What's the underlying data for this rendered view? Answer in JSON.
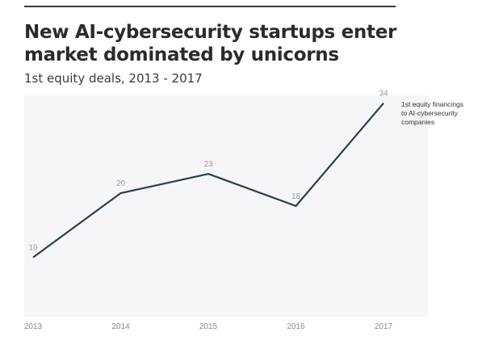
{
  "header": {
    "title": "New AI-cybersecurity startups enter market dominated by unicorns",
    "subtitle": "1st equity deals, 2013 - 2017"
  },
  "chart_data": {
    "type": "line",
    "title": "New AI-cybersecurity startups enter market dominated by unicorns",
    "subtitle": "1st equity deals, 2013 - 2017",
    "xlabel": "",
    "ylabel": "",
    "categories": [
      "2013",
      "2014",
      "2015",
      "2016",
      "2017"
    ],
    "series": [
      {
        "name": "1st equity financings to AI-cybersecurity companies",
        "values": [
          10,
          20,
          23,
          18,
          34
        ],
        "color": "#2c3e57"
      }
    ],
    "data_labels": [
      "10",
      "20",
      "23",
      "18",
      "34"
    ],
    "ylim": [
      0,
      40
    ],
    "grid": false,
    "legend_placement": "right, at line end",
    "colors": {
      "line": "#2c3e57",
      "area": "#f5f5f7",
      "label_text": "#9a9a9a",
      "axis_text": "#8a8a8a",
      "legend_text": "#333333"
    }
  }
}
